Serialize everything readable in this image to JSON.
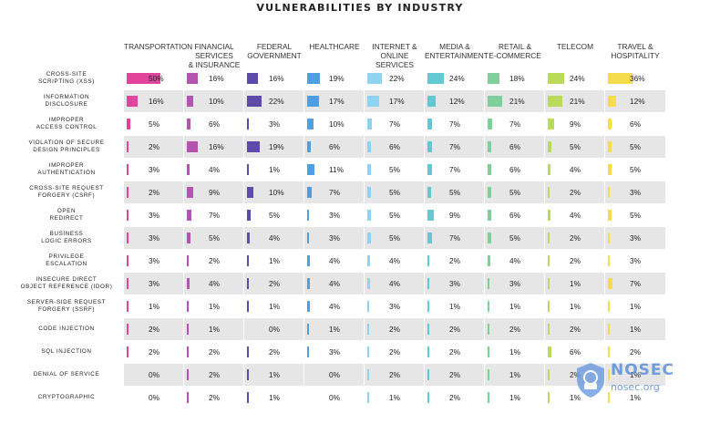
{
  "chart_data": {
    "type": "table",
    "title": "VULNERABILITIES BY INDUSTRY",
    "columns": [
      {
        "lines": [
          "TRANSPORTATION"
        ],
        "color": "#e0459b"
      },
      {
        "lines": [
          "FINANCIAL SERVICES",
          "& INSURANCE"
        ],
        "color": "#b554b0"
      },
      {
        "lines": [
          "FEDERAL",
          "GOVERNMENT"
        ],
        "color": "#5e4aa8"
      },
      {
        "lines": [
          "HEALTHCARE"
        ],
        "color": "#4e9ee0"
      },
      {
        "lines": [
          "INTERNET &",
          "ONLINE SERVICES"
        ],
        "color": "#8fd3f2"
      },
      {
        "lines": [
          "MEDIA &",
          "ENTERTAINMENT"
        ],
        "color": "#62c9d3"
      },
      {
        "lines": [
          "RETAIL &",
          "E-COMMERCE"
        ],
        "color": "#7fcf9c"
      },
      {
        "lines": [
          "TELECOM"
        ],
        "color": "#b9da5a"
      },
      {
        "lines": [
          "TRAVEL &",
          "HOSPITALITY"
        ],
        "color": "#f5dc4a"
      }
    ],
    "rows": [
      {
        "lines": [
          "CROSS-SITE",
          "SCRIPTING (XSS)"
        ],
        "values": [
          50,
          16,
          16,
          19,
          22,
          24,
          18,
          24,
          36
        ]
      },
      {
        "lines": [
          "INFORMATION",
          "DISCLOSURE"
        ],
        "values": [
          16,
          10,
          22,
          17,
          17,
          12,
          21,
          21,
          12
        ]
      },
      {
        "lines": [
          "IMPROPER",
          "ACCESS CONTROL"
        ],
        "values": [
          5,
          6,
          3,
          10,
          7,
          7,
          7,
          9,
          6
        ]
      },
      {
        "lines": [
          "VIOLATION OF SECURE",
          "DESIGN PRINCIPLES"
        ],
        "values": [
          2,
          16,
          19,
          6,
          6,
          7,
          6,
          5,
          5
        ]
      },
      {
        "lines": [
          "IMPROPER",
          "AUTHENTICATION"
        ],
        "values": [
          3,
          4,
          1,
          11,
          5,
          7,
          6,
          4,
          5
        ]
      },
      {
        "lines": [
          "CROSS-SITE REQUEST",
          "FORGERY (CSRF)"
        ],
        "values": [
          2,
          9,
          10,
          7,
          5,
          5,
          5,
          2,
          3
        ]
      },
      {
        "lines": [
          "OPEN",
          "REDIRECT"
        ],
        "values": [
          3,
          7,
          5,
          3,
          5,
          9,
          6,
          4,
          5
        ]
      },
      {
        "lines": [
          "BUSINESS",
          "LOGIC ERRORS"
        ],
        "values": [
          3,
          5,
          4,
          3,
          5,
          7,
          5,
          2,
          3
        ]
      },
      {
        "lines": [
          "PRIVILEGE",
          "ESCALATION"
        ],
        "values": [
          3,
          2,
          1,
          4,
          4,
          2,
          4,
          2,
          3
        ]
      },
      {
        "lines": [
          "INSECURE DIRECT",
          "OBJECT REFERENCE (IDOR)"
        ],
        "values": [
          3,
          4,
          2,
          4,
          4,
          3,
          3,
          1,
          7
        ]
      },
      {
        "lines": [
          "SERVER-SIDE REQUEST",
          "FORGERY (SSRF)"
        ],
        "values": [
          1,
          1,
          1,
          4,
          3,
          1,
          1,
          1,
          1
        ]
      },
      {
        "lines": [
          "CODE INJECTION"
        ],
        "values": [
          2,
          1,
          0,
          1,
          2,
          2,
          2,
          2,
          1
        ]
      },
      {
        "lines": [
          "SQL INJECTION"
        ],
        "values": [
          2,
          2,
          2,
          3,
          2,
          2,
          1,
          6,
          2
        ]
      },
      {
        "lines": [
          "DENIAL OF SERVICE"
        ],
        "values": [
          0,
          2,
          1,
          0,
          2,
          2,
          1,
          2,
          1
        ]
      },
      {
        "lines": [
          "CRYPTOGRAPHIC"
        ],
        "values": [
          0,
          2,
          1,
          0,
          1,
          2,
          1,
          1,
          1
        ]
      }
    ],
    "value_suffix": "%",
    "scale_max": 50
  },
  "watermark": {
    "line1": "NOSEC",
    "line2": "nosec.org",
    "icon": "shield-icon"
  }
}
